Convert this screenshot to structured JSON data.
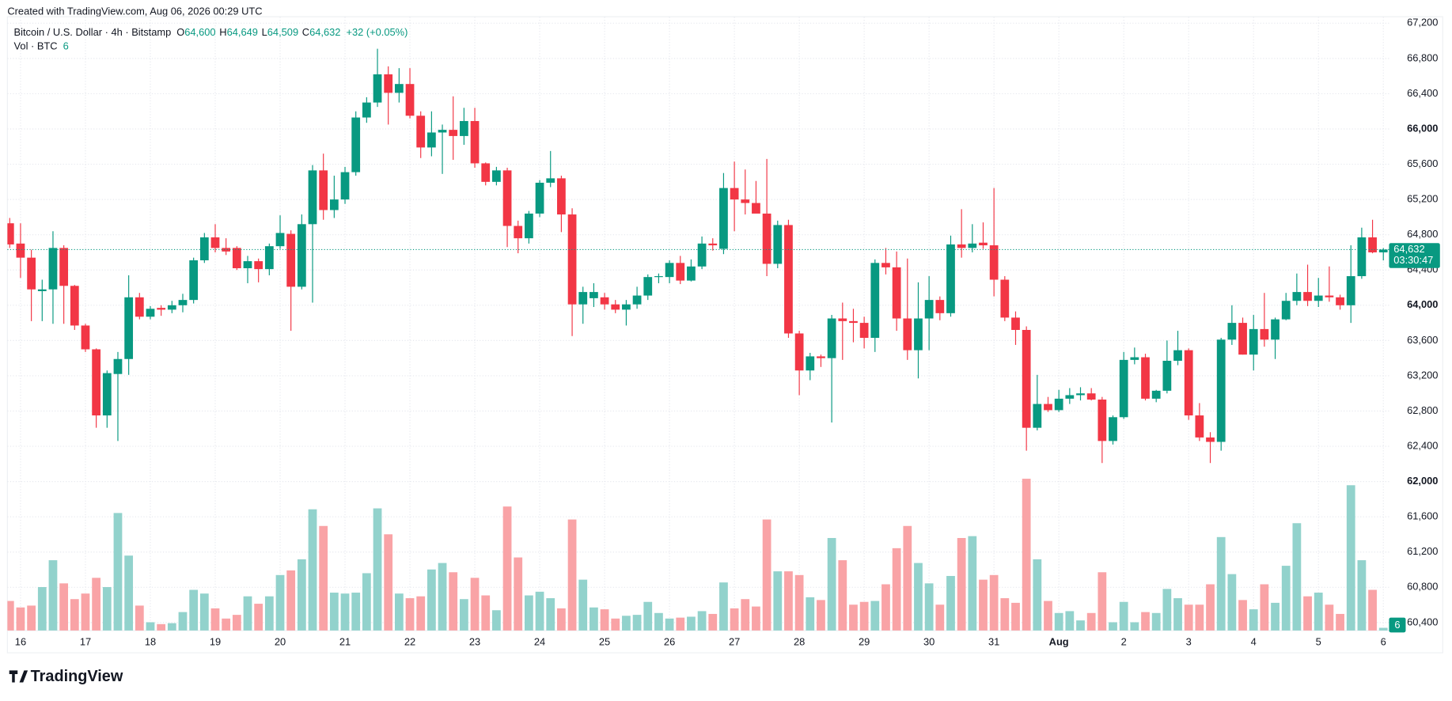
{
  "header": {
    "created": "Created with TradingView.com, Aug 06, 2026 00:29 UTC",
    "logo": "TradingView"
  },
  "chart_data": {
    "type": "candlestick",
    "legend": {
      "symbol": "Bitcoin / U.S. Dollar · 4h · Bitstamp",
      "items": [
        {
          "key": "O",
          "label": "64,600"
        },
        {
          "key": "H",
          "label": "64,649"
        },
        {
          "key": "L",
          "label": "64,509"
        },
        {
          "key": "C",
          "label": "64,632"
        }
      ],
      "change": "+32 (+0.05%)"
    },
    "up_color": "#089981",
    "down_color": "#f23645",
    "volume_up_color": "#92d2cc",
    "volume_down_color": "#f9a3a6",
    "categories": [
      null,
      "16",
      null,
      null,
      null,
      null,
      null,
      "17",
      null,
      null,
      null,
      null,
      null,
      "18",
      null,
      null,
      null,
      null,
      null,
      "19",
      null,
      null,
      null,
      null,
      null,
      "20",
      null,
      null,
      null,
      null,
      null,
      "21",
      null,
      null,
      null,
      null,
      null,
      "22",
      null,
      null,
      null,
      null,
      null,
      "23",
      null,
      null,
      null,
      null,
      null,
      "24",
      null,
      null,
      null,
      null,
      null,
      "25",
      null,
      null,
      null,
      null,
      null,
      "26",
      null,
      null,
      null,
      null,
      null,
      "27",
      null,
      null,
      null,
      null,
      null,
      "28",
      null,
      null,
      null,
      null,
      null,
      "29",
      null,
      null,
      null,
      null,
      null,
      "30",
      null,
      null,
      null,
      null,
      null,
      "31",
      null,
      null,
      null,
      null,
      null,
      "Aug",
      null,
      null,
      null,
      null,
      null,
      "2",
      null,
      null,
      null,
      null,
      null,
      "3",
      null,
      null,
      null,
      null,
      null,
      "4",
      null,
      null,
      null,
      null,
      null,
      "5",
      null,
      null,
      null,
      null,
      null,
      "6"
    ],
    "open": [
      64930,
      64700,
      64540,
      64160,
      64180,
      64650,
      64220,
      63770,
      63500,
      62750,
      63220,
      63390,
      64090,
      63870,
      63970,
      63950,
      64000,
      64060,
      64510,
      64770,
      64650,
      64650,
      64420,
      64500,
      64410,
      64670,
      64810,
      64210,
      64920,
      65530,
      65080,
      65200,
      65510,
      66130,
      66300,
      66620,
      66410,
      66510,
      66150,
      65790,
      65960,
      65990,
      65920,
      66090,
      65610,
      65400,
      65530,
      64900,
      64760,
      65040,
      65390,
      65440,
      65030,
      64010,
      64080,
      64090,
      64010,
      63950,
      64010,
      64110,
      64320,
      64320,
      64480,
      64280,
      64440,
      64700,
      64640,
      65330,
      65200,
      65160,
      65040,
      64470,
      64910,
      63680,
      63260,
      63420,
      63400,
      63850,
      63820,
      63800,
      63630,
      64480,
      64430,
      63850,
      63490,
      63850,
      64060,
      63910,
      64690,
      64650,
      64710,
      64680,
      64290,
      63860,
      63720,
      62610,
      62880,
      62810,
      62940,
      62980,
      63000,
      62930,
      62460,
      62730,
      63380,
      63410,
      62940,
      63030,
      63370,
      63490,
      62750,
      62500,
      62450,
      63610,
      63800,
      63440,
      63730,
      63610,
      63840,
      64050,
      64150,
      64050,
      64110,
      64090,
      64000,
      64330,
      64770,
      64600
    ],
    "high": [
      64990,
      64930,
      64630,
      64290,
      64840,
      64680,
      64230,
      63790,
      63510,
      63260,
      63470,
      64340,
      64140,
      63990,
      64000,
      64050,
      64130,
      64540,
      64820,
      64920,
      64760,
      64670,
      64560,
      64530,
      64700,
      65020,
      64850,
      65030,
      65590,
      65720,
      65470,
      65570,
      66200,
      66360,
      66910,
      66710,
      66690,
      66690,
      66200,
      66200,
      66050,
      66370,
      66240,
      66240,
      65620,
      65570,
      65560,
      64960,
      65070,
      65420,
      65750,
      65470,
      65100,
      64210,
      64250,
      64140,
      64060,
      64060,
      64210,
      64350,
      64360,
      64510,
      64560,
      64520,
      64780,
      64760,
      65500,
      65630,
      65540,
      65410,
      65660,
      64960,
      64970,
      63710,
      63460,
      63440,
      63890,
      64030,
      63960,
      63870,
      64520,
      64650,
      64610,
      64530,
      64260,
      64330,
      64100,
      64790,
      65090,
      64920,
      64940,
      65330,
      64330,
      63930,
      63760,
      63210,
      62960,
      63040,
      63060,
      63070,
      63060,
      62960,
      62750,
      63470,
      63520,
      63450,
      63040,
      63600,
      63710,
      63510,
      62890,
      62560,
      63630,
      64000,
      63860,
      63890,
      64140,
      63860,
      64140,
      64360,
      64460,
      64310,
      64440,
      64120,
      64680,
      64880,
      64970,
      64649
    ],
    "low": [
      64650,
      64310,
      63820,
      63820,
      63790,
      63790,
      63720,
      63470,
      62610,
      62610,
      62460,
      63210,
      63840,
      63840,
      63880,
      63910,
      63920,
      64020,
      64480,
      64600,
      64570,
      64400,
      64250,
      64260,
      64340,
      64640,
      63710,
      64180,
      64030,
      64970,
      64990,
      65150,
      65470,
      66070,
      66250,
      66050,
      66300,
      66120,
      65670,
      65690,
      65490,
      65650,
      65820,
      65560,
      65360,
      65360,
      64660,
      64590,
      64700,
      65000,
      65340,
      64830,
      63650,
      63790,
      63980,
      63950,
      63910,
      63770,
      63960,
      64060,
      64250,
      64250,
      64240,
      64270,
      64410,
      64620,
      64580,
      64840,
      65030,
      65050,
      64330,
      64420,
      63630,
      62980,
      63150,
      63300,
      62670,
      63380,
      63580,
      63510,
      63470,
      64350,
      63710,
      63380,
      63170,
      63490,
      63830,
      63870,
      64540,
      64600,
      64640,
      64100,
      63820,
      63550,
      62350,
      62580,
      62790,
      62790,
      62880,
      62920,
      62920,
      62210,
      62420,
      62710,
      63330,
      62920,
      62900,
      63000,
      63320,
      62700,
      62460,
      62210,
      62350,
      63550,
      63440,
      63260,
      63530,
      63390,
      63830,
      64000,
      63990,
      63980,
      64040,
      63950,
      63800,
      64300,
      64590,
      64509
    ],
    "close": [
      64690,
      64540,
      64180,
      64180,
      64650,
      64220,
      63770,
      63500,
      62750,
      63230,
      63390,
      64090,
      63870,
      63960,
      63950,
      64000,
      64060,
      64510,
      64770,
      64650,
      64610,
      64420,
      64500,
      64410,
      64670,
      64820,
      64210,
      64920,
      65530,
      65080,
      65200,
      65510,
      66130,
      66300,
      66620,
      66410,
      66510,
      66150,
      65790,
      65960,
      65990,
      65920,
      66090,
      65610,
      65400,
      65530,
      64900,
      64760,
      65040,
      65390,
      65440,
      65030,
      64010,
      64150,
      64150,
      64010,
      63950,
      64010,
      64110,
      64320,
      64330,
      64480,
      64280,
      64440,
      64700,
      64680,
      65330,
      65200,
      65160,
      65040,
      64470,
      64910,
      63680,
      63260,
      63420,
      63400,
      63850,
      63820,
      63800,
      63630,
      64480,
      64430,
      63850,
      63490,
      63850,
      64060,
      63910,
      64690,
      64650,
      64700,
      64680,
      64290,
      63860,
      63720,
      62610,
      62880,
      62810,
      62940,
      62980,
      63000,
      62930,
      62460,
      62730,
      63380,
      63410,
      62940,
      63030,
      63370,
      63490,
      62750,
      62500,
      62450,
      63610,
      63800,
      63440,
      63730,
      63610,
      63840,
      64050,
      64150,
      64050,
      64110,
      64090,
      64000,
      64330,
      64770,
      64600,
      64632
    ],
    "volume": {
      "name": "Vol · BTC",
      "last_label": "6",
      "values": [
        64,
        50,
        54,
        94,
        152,
        102,
        68,
        80,
        114,
        94,
        254,
        162,
        54,
        18,
        14,
        16,
        40,
        88,
        80,
        48,
        26,
        34,
        74,
        58,
        74,
        120,
        130,
        154,
        262,
        226,
        82,
        80,
        82,
        124,
        264,
        208,
        80,
        70,
        74,
        132,
        146,
        126,
        68,
        114,
        76,
        44,
        268,
        158,
        76,
        84,
        70,
        48,
        240,
        110,
        50,
        46,
        26,
        32,
        34,
        62,
        38,
        26,
        28,
        30,
        42,
        36,
        104,
        48,
        68,
        52,
        240,
        128,
        128,
        120,
        72,
        66,
        200,
        152,
        56,
        62,
        64,
        100,
        178,
        226,
        146,
        102,
        56,
        118,
        200,
        204,
        110,
        120,
        70,
        60,
        328,
        154,
        64,
        38,
        42,
        22,
        38,
        126,
        18,
        62,
        18,
        40,
        38,
        90,
        70,
        56,
        56,
        100,
        202,
        122,
        66,
        46,
        100,
        60,
        140,
        232,
        74,
        82,
        56,
        36,
        314,
        152,
        88,
        6
      ]
    },
    "vlim": [
      0,
      400
    ],
    "ylim": [
      60310,
      67270
    ],
    "yticks": [
      {
        "value": 60400,
        "label": "60,400"
      },
      {
        "value": 60800,
        "label": "60,800"
      },
      {
        "value": 61200,
        "label": "61,200"
      },
      {
        "value": 61600,
        "label": "61,600"
      },
      {
        "value": 62000,
        "label": "62,000"
      },
      {
        "value": 62400,
        "label": "62,400"
      },
      {
        "value": 62800,
        "label": "62,800"
      },
      {
        "value": 63200,
        "label": "63,200"
      },
      {
        "value": 63600,
        "label": "63,600"
      },
      {
        "value": 64000,
        "label": "64,000"
      },
      {
        "value": 64400,
        "label": "64,400"
      },
      {
        "value": 64800,
        "label": "64,800"
      },
      {
        "value": 65200,
        "label": "65,200"
      },
      {
        "value": 65600,
        "label": "65,600"
      },
      {
        "value": 66000,
        "label": "66,000"
      },
      {
        "value": 66400,
        "label": "66,400"
      },
      {
        "value": 66800,
        "label": "66,800"
      },
      {
        "value": 67200,
        "label": "67,200"
      }
    ],
    "last_price_label": "64,632",
    "countdown": "03:30:47",
    "grid": true
  }
}
